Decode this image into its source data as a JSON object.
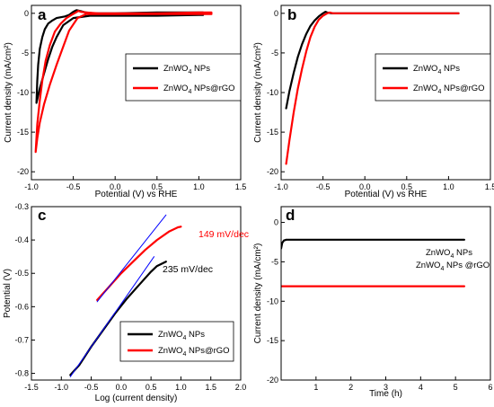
{
  "chart_data": [
    {
      "panel_label": "a",
      "type": "line",
      "xlabel": "Potential (V) vs RHE",
      "ylabel": "Current density (mA/cm²)",
      "xlim": [
        -1.0,
        1.5
      ],
      "ylim": [
        -21,
        1
      ],
      "xticks": [
        -1.0,
        -0.5,
        0.0,
        0.5,
        1.0,
        1.5
      ],
      "xtick_labels": [
        "-1.0",
        "-0.5",
        "0.0",
        "0.5",
        "1.0",
        "1.5"
      ],
      "yticks": [
        0,
        -5,
        -10,
        -15,
        -20
      ],
      "ytick_labels": [
        "0",
        "-5",
        "-10",
        "-15",
        "-20"
      ],
      "legend": {
        "position": "center-right",
        "entries": [
          [
            "ZnWO",
            "4",
            " NPs"
          ],
          [
            "ZnWO",
            "4",
            " NPs@rGO"
          ]
        ]
      },
      "series": [
        {
          "name": "ZnWO4 NPs",
          "color": "#000000",
          "x": [
            -0.94,
            -0.93,
            -0.92,
            -0.9,
            -0.87,
            -0.84,
            -0.8,
            -0.75,
            -0.7,
            -0.6,
            -0.55,
            -0.5,
            -0.46,
            -0.42,
            -0.35,
            -0.25,
            0.0,
            0.5,
            1.0,
            1.05,
            1.05,
            1.0,
            0.5,
            0.0,
            -0.3,
            -0.5,
            -0.62,
            -0.7,
            -0.75,
            -0.8,
            -0.85,
            -0.9,
            -0.94
          ],
          "y": [
            -11.3,
            -8.5,
            -6.5,
            -4.5,
            -3.0,
            -2.0,
            -1.3,
            -0.9,
            -0.6,
            -0.4,
            -0.2,
            0.2,
            0.4,
            0.3,
            0.1,
            0.0,
            0.0,
            0.1,
            0.1,
            0.1,
            -0.2,
            -0.2,
            -0.3,
            -0.3,
            -0.3,
            -0.6,
            -1.5,
            -3.0,
            -4.2,
            -5.8,
            -7.6,
            -9.5,
            -11.3
          ]
        },
        {
          "name": "ZnWO4 NPs@rGO",
          "color": "#ff0000",
          "x": [
            -0.95,
            -0.93,
            -0.9,
            -0.87,
            -0.83,
            -0.78,
            -0.72,
            -0.65,
            -0.58,
            -0.52,
            -0.47,
            -0.44,
            -0.41,
            -0.35,
            -0.2,
            0.0,
            0.5,
            1.0,
            1.15,
            1.15,
            1.0,
            0.5,
            0.0,
            -0.35,
            -0.45,
            -0.55,
            -0.62,
            -0.7,
            -0.78,
            -0.85,
            -0.9,
            -0.93,
            -0.95
          ],
          "y": [
            -17.5,
            -14.0,
            -11.0,
            -8.5,
            -6.0,
            -4.0,
            -2.3,
            -1.3,
            -0.6,
            -0.2,
            0.1,
            0.3,
            0.2,
            0.1,
            0.0,
            0.0,
            0.0,
            0.1,
            0.1,
            -0.1,
            -0.1,
            -0.1,
            -0.1,
            -0.1,
            -0.6,
            -2.2,
            -4.2,
            -6.5,
            -9.0,
            -11.5,
            -13.8,
            -15.8,
            -17.5
          ]
        }
      ]
    },
    {
      "panel_label": "b",
      "type": "line",
      "xlabel": "Potential (V) vs RHE",
      "ylabel": "Current density (mA/cm²)",
      "xlim": [
        -1.0,
        1.5
      ],
      "ylim": [
        -21,
        1
      ],
      "xticks": [
        -1.0,
        -0.5,
        0.0,
        0.5,
        1.0,
        1.5
      ],
      "xtick_labels": [
        "-1.0",
        "-0.5",
        "0.0",
        "0.5",
        "1.0",
        "1.5"
      ],
      "yticks": [
        0,
        -5,
        -10,
        -15,
        -20
      ],
      "ytick_labels": [
        "0",
        "-5",
        "-10",
        "-15",
        "-20"
      ],
      "legend": {
        "position": "center-right",
        "entries": [
          [
            "ZnWO",
            "4",
            " NPs"
          ],
          [
            "ZnWO",
            "4",
            " NPs@rGO"
          ]
        ]
      },
      "series": [
        {
          "name": "ZnWO4 NPs",
          "color": "#000000",
          "x": [
            -0.94,
            -0.9,
            -0.85,
            -0.8,
            -0.75,
            -0.7,
            -0.65,
            -0.6,
            -0.55,
            -0.5,
            -0.47,
            -0.45,
            -0.4,
            -0.2,
            0.0,
            0.5,
            1.0,
            1.12
          ],
          "y": [
            -12.0,
            -9.8,
            -7.5,
            -5.5,
            -3.9,
            -2.6,
            -1.6,
            -0.9,
            -0.4,
            0.0,
            0.2,
            0.1,
            0.0,
            0.0,
            0.0,
            0.0,
            0.0,
            0.0
          ]
        },
        {
          "name": "ZnWO4 NPs@rGO",
          "color": "#ff0000",
          "x": [
            -0.94,
            -0.9,
            -0.85,
            -0.8,
            -0.75,
            -0.7,
            -0.65,
            -0.6,
            -0.55,
            -0.5,
            -0.45,
            -0.42,
            -0.38,
            -0.2,
            0.0,
            0.5,
            1.0,
            1.12
          ],
          "y": [
            -19.0,
            -16.0,
            -12.5,
            -9.5,
            -7.0,
            -4.8,
            -3.0,
            -1.7,
            -0.8,
            -0.3,
            0.0,
            0.1,
            0.0,
            0.0,
            0.0,
            0.0,
            0.0,
            0.0
          ]
        }
      ]
    },
    {
      "panel_label": "c",
      "type": "line",
      "xlabel": "Log (current density)",
      "ylabel": "Potential (V)",
      "xlim": [
        -1.5,
        2.0
      ],
      "ylim": [
        -0.82,
        -0.3
      ],
      "xticks": [
        -1.5,
        -1.0,
        -0.5,
        0.0,
        0.5,
        1.0,
        1.5,
        2.0
      ],
      "xtick_labels": [
        "-1.5",
        "-1.0",
        "-0.5",
        "0.0",
        "0.5",
        "1.0",
        "1.5",
        "2.0"
      ],
      "yticks": [
        -0.3,
        -0.4,
        -0.5,
        -0.6,
        -0.7,
        -0.8
      ],
      "ytick_labels": [
        "-0.3",
        "-0.4",
        "-0.5",
        "-0.6",
        "-0.7",
        "-0.8"
      ],
      "legend": {
        "position": "bottom-right",
        "entries": [
          [
            "ZnWO",
            "4",
            " NPs"
          ],
          [
            "ZnWO",
            "4",
            " NPs@rGO"
          ]
        ]
      },
      "annotations": [
        {
          "text": "149 mV/dec",
          "color": "#ff0000",
          "x": 0.75,
          "y": -0.415
        },
        {
          "text": "235 mV/dec",
          "color": "#000000",
          "x": 0.5,
          "y": -0.508
        }
      ],
      "series": [
        {
          "name": "ZnWO4 NPs",
          "color": "#000000",
          "x": [
            -0.85,
            -0.7,
            -0.5,
            -0.3,
            -0.1,
            0.1,
            0.3,
            0.5,
            0.6,
            0.75
          ],
          "y": [
            -0.805,
            -0.775,
            -0.72,
            -0.67,
            -0.62,
            -0.575,
            -0.535,
            -0.495,
            -0.478,
            -0.465
          ]
        },
        {
          "name": "ZnWO4 NPs@rGO",
          "color": "#ff0000",
          "x": [
            -0.4,
            -0.2,
            0.0,
            0.2,
            0.4,
            0.6,
            0.8,
            0.95,
            1.0
          ],
          "y": [
            -0.58,
            -0.54,
            -0.5,
            -0.465,
            -0.43,
            -0.4,
            -0.375,
            -0.362,
            -0.36
          ]
        },
        {
          "name": "Tafel fit 1",
          "color": "#0000ff",
          "x": [
            -0.85,
            0.55
          ],
          "y": [
            -0.81,
            -0.45
          ]
        },
        {
          "name": "Tafel fit 2",
          "color": "#0000ff",
          "x": [
            -0.4,
            0.75
          ],
          "y": [
            -0.585,
            -0.325
          ]
        }
      ]
    },
    {
      "panel_label": "d",
      "type": "line",
      "xlabel": "Time (h)",
      "ylabel": "Current density (mA/cm²)",
      "xlim": [
        0,
        6
      ],
      "ylim": [
        -20,
        2
      ],
      "xticks": [
        1,
        2,
        3,
        4,
        5,
        6
      ],
      "xtick_labels": [
        "1",
        "2",
        "3",
        "4",
        "5",
        "6"
      ],
      "yticks": [
        0,
        -5,
        -10,
        -15,
        -20
      ],
      "ytick_labels": [
        "0",
        "-5",
        "-10",
        "-15",
        "-20"
      ],
      "annotations": [
        {
          "text_parts": [
            "ZnWO",
            "4",
            " NPs"
          ],
          "color": "#000000"
        },
        {
          "text_parts": [
            "ZnWO",
            "4",
            " NPs @rGO"
          ],
          "color": "#ff0000"
        }
      ],
      "series": [
        {
          "name": "ZnWO4 NPs",
          "color": "#000000",
          "x": [
            0.0,
            0.03,
            0.08,
            0.15,
            0.3,
            1.0,
            2.0,
            3.0,
            4.0,
            5.0,
            5.25
          ],
          "y": [
            -3.3,
            -2.6,
            -2.3,
            -2.2,
            -2.2,
            -2.2,
            -2.2,
            -2.2,
            -2.2,
            -2.2,
            -2.2
          ]
        },
        {
          "name": "ZnWO4 NPs@rGO",
          "color": "#ff0000",
          "x": [
            0.0,
            1.0,
            2.0,
            3.0,
            4.0,
            5.0,
            5.25
          ],
          "y": [
            -8.1,
            -8.1,
            -8.1,
            -8.1,
            -8.1,
            -8.1,
            -8.1
          ]
        }
      ]
    }
  ]
}
